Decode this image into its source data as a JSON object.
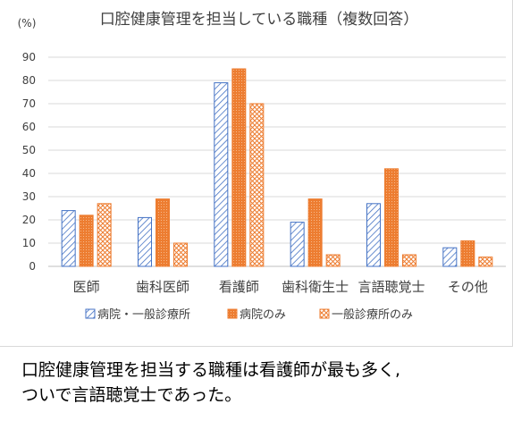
{
  "chart_data": {
    "type": "bar",
    "title": "口腔健康管理を担当している職種（複数回答）",
    "ylabel": "(%)",
    "xlabel": "",
    "ylim": [
      0,
      90
    ],
    "yticks": [
      0,
      10,
      20,
      30,
      40,
      50,
      60,
      70,
      80,
      90
    ],
    "grid": true,
    "legend": "bottom",
    "categories": [
      "医師",
      "歯科医師",
      "看護師",
      "歯科衛生士",
      "言語聴覚士",
      "その他"
    ],
    "series": [
      {
        "name": "病院・一般診療所",
        "values": [
          24,
          21,
          79,
          19,
          27,
          8
        ],
        "color": "#4472c4",
        "pattern": "hatch"
      },
      {
        "name": "病院のみ",
        "values": [
          22,
          29,
          85,
          29,
          42,
          11
        ],
        "color": "#ed7d31",
        "pattern": "dots"
      },
      {
        "name": "一般診療所のみ",
        "values": [
          27,
          10,
          70,
          5,
          5,
          4
        ],
        "color": "#ed7d31",
        "pattern": "cross"
      }
    ]
  },
  "caption": {
    "line1": "口腔健康管理を担当する職種は看護師が最も多く,",
    "line2": "ついで言語聴覚士であった。"
  }
}
